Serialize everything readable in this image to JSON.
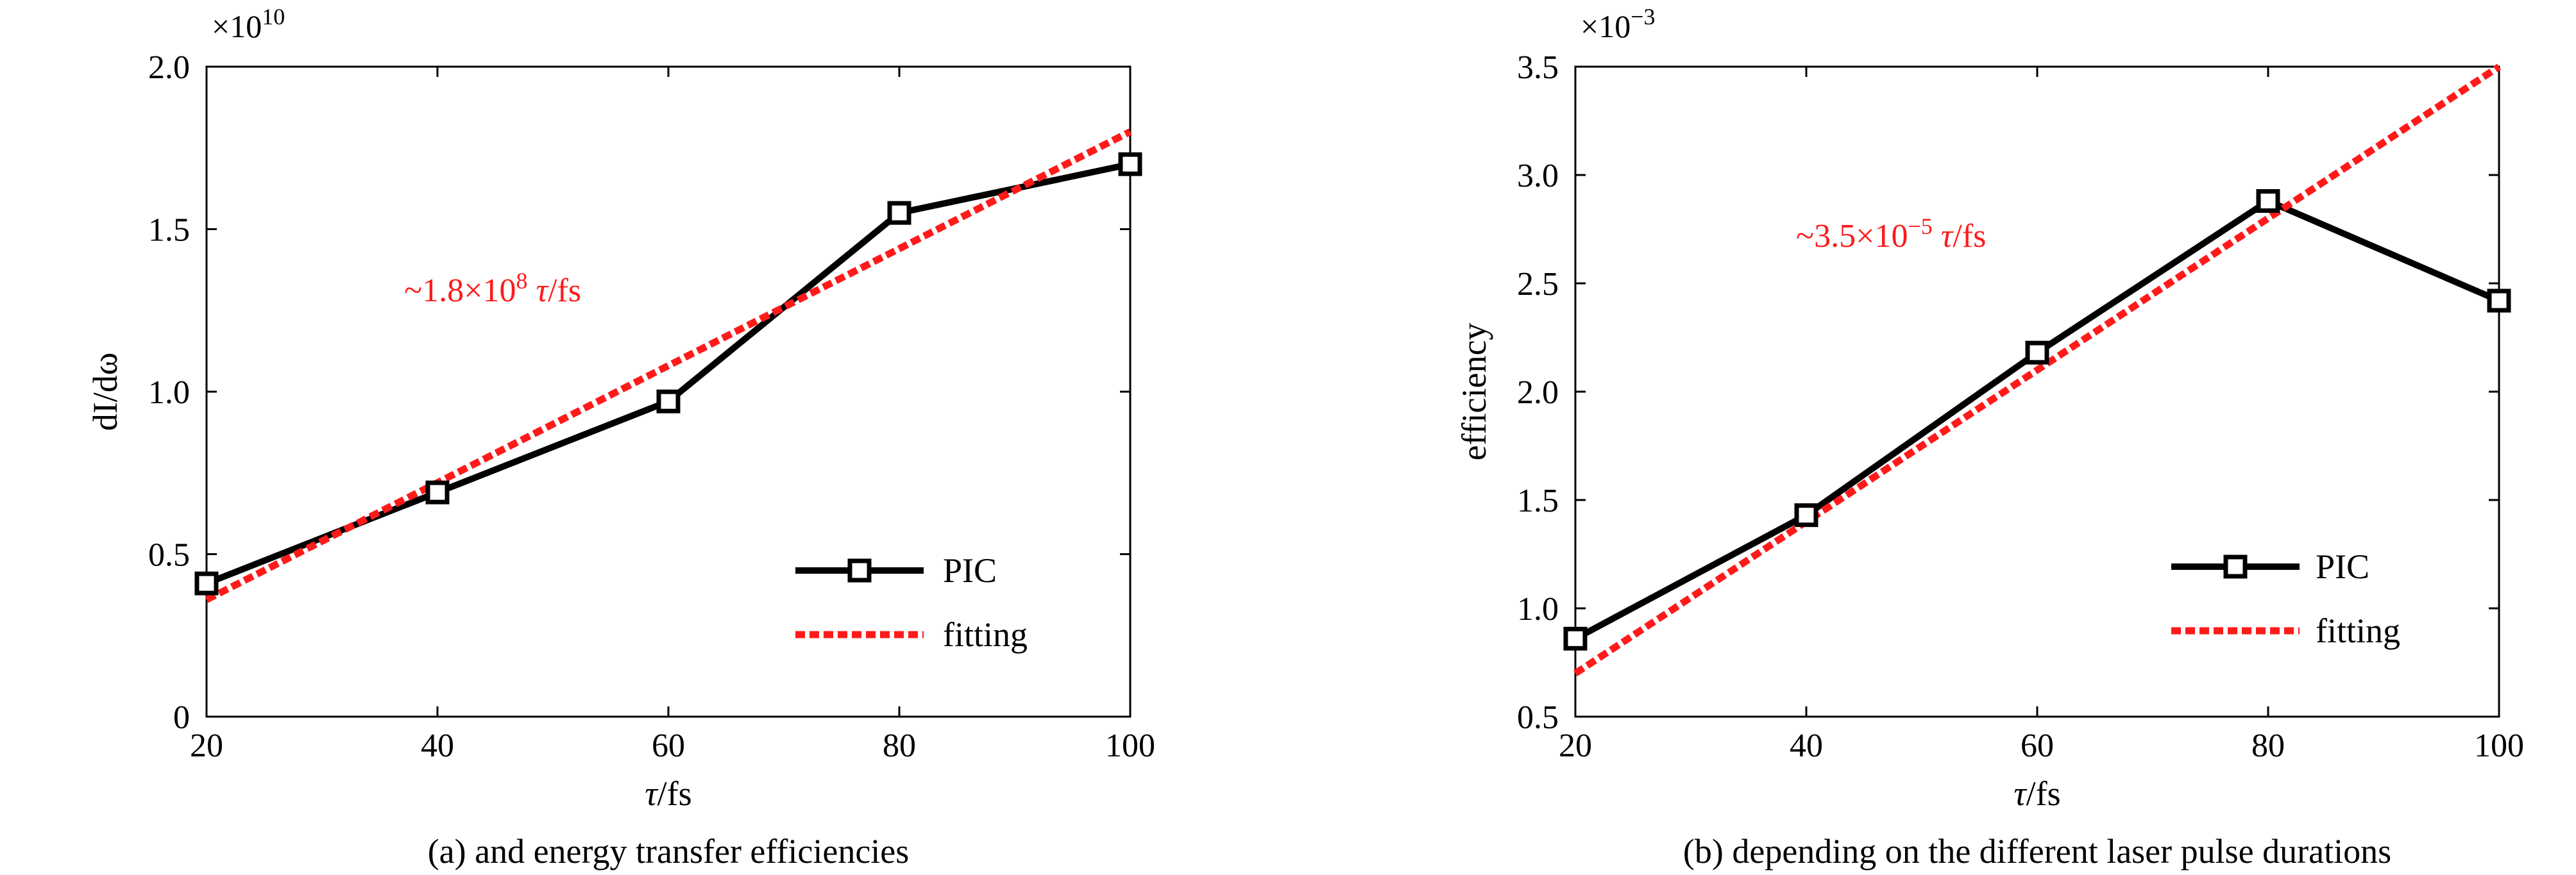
{
  "chart_data": [
    {
      "type": "line",
      "caption": "(a) and energy transfer efficiencies",
      "xlabel_symbol": "τ",
      "xlabel_unit": "/fs",
      "ylabel": "dI/dω",
      "multiplier_base": "×10",
      "multiplier_exponent": "10",
      "x": [
        20,
        40,
        60,
        80,
        100
      ],
      "xlim": [
        20,
        100
      ],
      "ylim": [
        0,
        2.0
      ],
      "x_ticks": [
        "20",
        "40",
        "60",
        "80",
        "100"
      ],
      "y_ticks": [
        "0",
        "0.5",
        "1.0",
        "1.5",
        "2.0"
      ],
      "series": [
        {
          "name": "PIC",
          "values": [
            0.41,
            0.69,
            0.97,
            1.55,
            1.7
          ],
          "color": "#000000",
          "style": "solid",
          "marker": "square"
        },
        {
          "name": "fitting",
          "values": [
            0.36,
            0.72,
            1.08,
            1.44,
            1.8
          ],
          "color": "#ff1a1a",
          "style": "dashed"
        }
      ],
      "annotation": {
        "prefix": "~1.8×10",
        "exponent": "8",
        "symbol": "τ",
        "suffix": "/fs"
      },
      "legend_position": "lower-right",
      "grid": false
    },
    {
      "type": "line",
      "caption": "(b) depending on the different laser pulse durations",
      "xlabel_symbol": "τ",
      "xlabel_unit": "/fs",
      "ylabel": "efficiency",
      "multiplier_base": "×10",
      "multiplier_exponent": "−3",
      "x": [
        20,
        40,
        60,
        80,
        100
      ],
      "xlim": [
        20,
        100
      ],
      "ylim": [
        0.5,
        3.5
      ],
      "x_ticks": [
        "20",
        "40",
        "60",
        "80",
        "100"
      ],
      "y_ticks": [
        "0.5",
        "1.0",
        "1.5",
        "2.0",
        "2.5",
        "3.0",
        "3.5"
      ],
      "series": [
        {
          "name": "PIC",
          "values": [
            0.86,
            1.43,
            2.18,
            2.88,
            2.42
          ],
          "color": "#000000",
          "style": "solid",
          "marker": "square"
        },
        {
          "name": "fitting",
          "values": [
            0.7,
            1.4,
            2.1,
            2.8,
            3.5
          ],
          "color": "#ff1a1a",
          "style": "dashed"
        }
      ],
      "annotation": {
        "prefix": "~3.5×10",
        "exponent": "−5",
        "symbol": "τ",
        "suffix": "/fs"
      },
      "legend_position": "lower-right",
      "grid": false
    }
  ]
}
